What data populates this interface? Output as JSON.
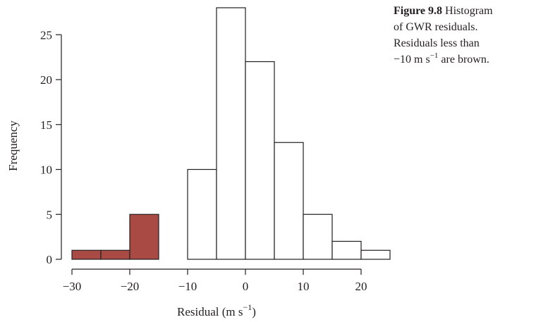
{
  "caption": {
    "label": "Figure 9.8",
    "line1": "Histogram",
    "line2": "of GWR residuals.",
    "line3": "Residuals less than",
    "line4_value": "−10 m s",
    "line4_exp": "−1",
    "line4_end": " are brown."
  },
  "chart_data": {
    "type": "bar",
    "subtype": "histogram",
    "xlabel": "Residual (m s",
    "xlabel_exp": "−1",
    "xlabel_end": ")",
    "ylabel": "Frequency",
    "xlim": [
      -30,
      25
    ],
    "ylim": [
      0,
      28
    ],
    "x_ticks": [
      -30,
      -20,
      -10,
      0,
      10,
      20
    ],
    "x_tick_labels": [
      "−30",
      "−20",
      "−10",
      "0",
      "10",
      "20"
    ],
    "y_ticks": [
      0,
      5,
      10,
      15,
      20,
      25
    ],
    "y_tick_labels": [
      "0",
      "5",
      "10",
      "15",
      "20",
      "25"
    ],
    "grid": false,
    "bins": [
      {
        "from": -30,
        "to": -25,
        "count": 1,
        "highlight": true
      },
      {
        "from": -25,
        "to": -20,
        "count": 1,
        "highlight": true
      },
      {
        "from": -20,
        "to": -15,
        "count": 5,
        "highlight": true
      },
      {
        "from": -15,
        "to": -10,
        "count": 0,
        "highlight": false
      },
      {
        "from": -10,
        "to": -5,
        "count": 10,
        "highlight": false
      },
      {
        "from": -5,
        "to": 0,
        "count": 28,
        "highlight": false
      },
      {
        "from": 0,
        "to": 5,
        "count": 22,
        "highlight": false
      },
      {
        "from": 5,
        "to": 10,
        "count": 13,
        "highlight": false
      },
      {
        "from": 10,
        "to": 15,
        "count": 5,
        "highlight": false
      },
      {
        "from": 15,
        "to": 20,
        "count": 2,
        "highlight": false
      },
      {
        "from": 20,
        "to": 25,
        "count": 1,
        "highlight": false
      }
    ],
    "colors": {
      "highlight": "#a94a44",
      "normal": "#ffffff",
      "stroke": "#231f20"
    }
  }
}
